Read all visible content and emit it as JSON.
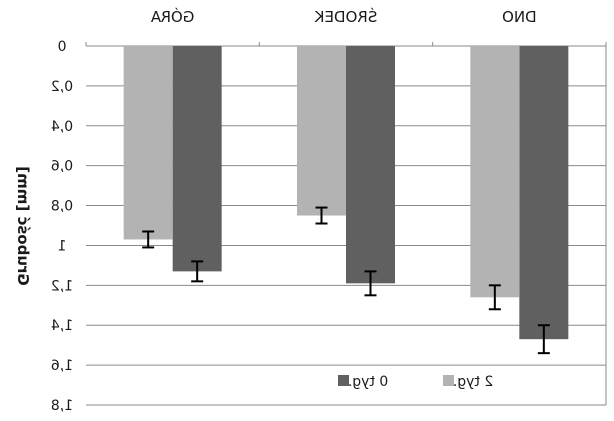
{
  "chart_data": {
    "type": "bar",
    "orientation": "vertical",
    "categories": [
      "DNO",
      "ŚRODEK",
      "GÓRA"
    ],
    "ylabel": "Grubość [mm]",
    "xlabel": "",
    "ylim": [
      0,
      1.8
    ],
    "y_inverted": true,
    "yticks": [
      "0",
      "0,2",
      "0,4",
      "0,6",
      "0,8",
      "1",
      "1,2",
      "1,4",
      "1,6",
      "1,8"
    ],
    "ytick_values": [
      0,
      0.2,
      0.4,
      0.6,
      0.8,
      1.0,
      1.2,
      1.4,
      1.6,
      1.8
    ],
    "grid": true,
    "legend_position": "bottom-center",
    "mirrored_horizontally": true,
    "series": [
      {
        "name": "0 tyg.",
        "color": "#606060",
        "values": [
          1.47,
          1.19,
          1.13
        ],
        "errors": [
          0.07,
          0.06,
          0.05
        ]
      },
      {
        "name": "2 tyg.",
        "color": "#b3b3b3",
        "values": [
          1.26,
          0.85,
          0.97
        ],
        "errors": [
          0.06,
          0.04,
          0.04
        ]
      }
    ]
  }
}
